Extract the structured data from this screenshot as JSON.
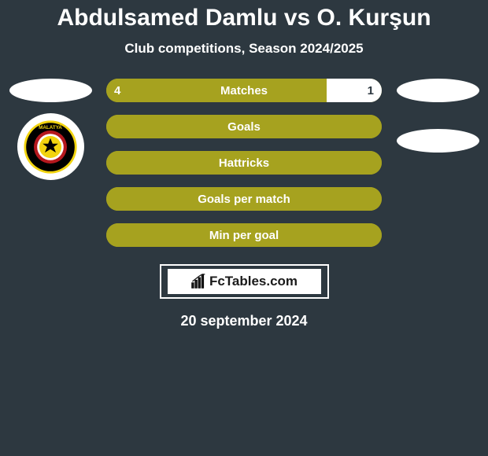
{
  "title": "Abdulsamed Damlu vs O. Kurşun",
  "subtitle": "Club competitions, Season 2024/2025",
  "date_line": "20 september 2024",
  "footer_brand": "FcTables.com",
  "colors": {
    "primary": "#a6a21f",
    "background": "#2d3840",
    "white": "#ffffff",
    "crest_red": "#b5181e",
    "crest_black": "#000000",
    "crest_yellow": "#f2d40f"
  },
  "stats": [
    {
      "label": "Matches",
      "left_value": "4",
      "right_value": "1",
      "left_pct": 80,
      "right_pct": 20,
      "left_color": "#a6a21f",
      "right_color": "#ffffff",
      "right_text_color": "#2d3840"
    },
    {
      "label": "Goals",
      "left_value": "",
      "right_value": "",
      "left_pct": 100,
      "right_pct": 0,
      "left_color": "#a6a21f",
      "right_color": "#ffffff"
    },
    {
      "label": "Hattricks",
      "left_value": "",
      "right_value": "",
      "left_pct": 100,
      "right_pct": 0,
      "left_color": "#a6a21f",
      "right_color": "#ffffff"
    },
    {
      "label": "Goals per match",
      "left_value": "",
      "right_value": "",
      "left_pct": 100,
      "right_pct": 0,
      "left_color": "#a6a21f",
      "right_color": "#ffffff"
    },
    {
      "label": "Min per goal",
      "left_value": "",
      "right_value": "",
      "left_pct": 100,
      "right_pct": 0,
      "left_color": "#a6a21f",
      "right_color": "#ffffff"
    }
  ],
  "crest": {
    "label_top": "MALATYA"
  }
}
